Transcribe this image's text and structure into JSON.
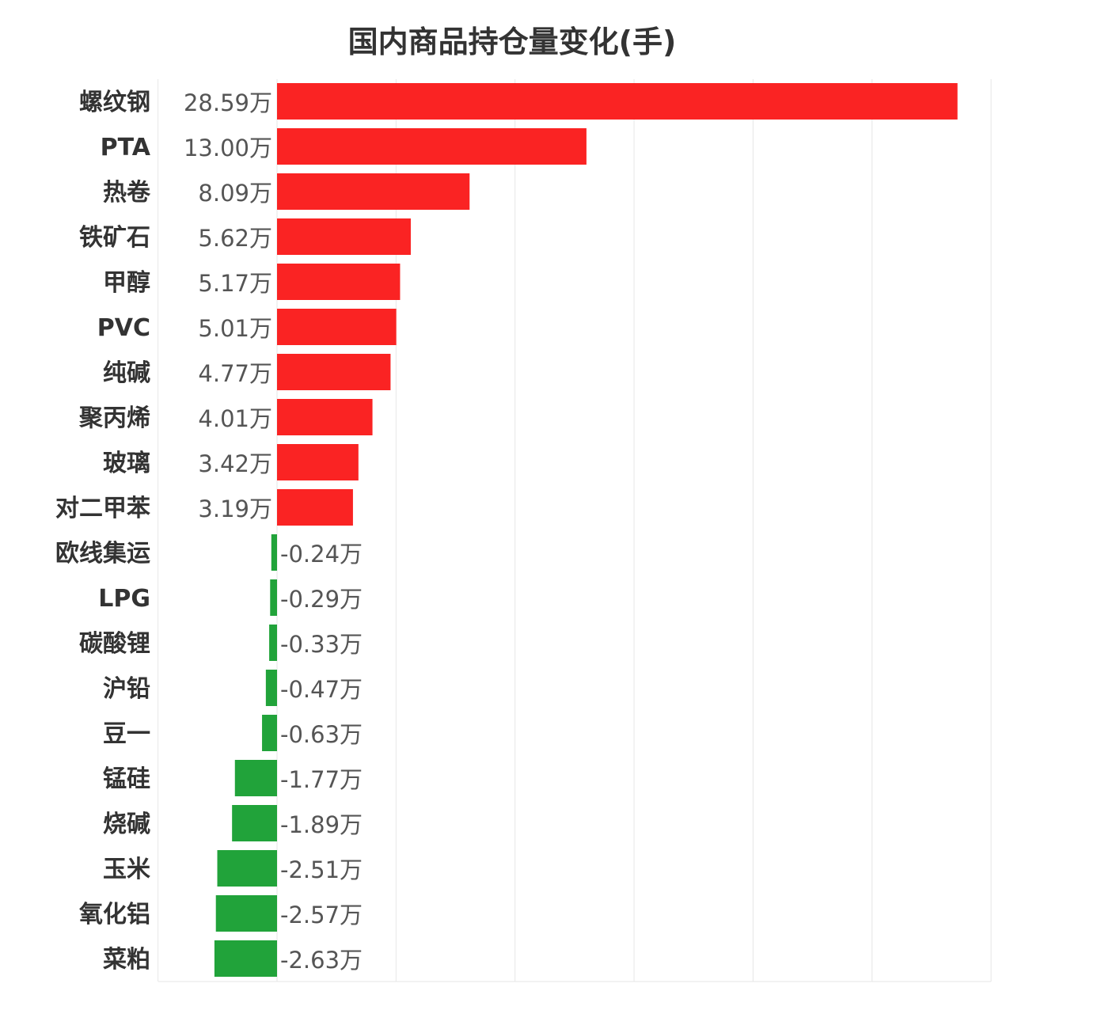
{
  "chart_data": {
    "type": "bar",
    "orientation": "horizontal",
    "title": "国内商品持仓量变化(手)",
    "unit": "万",
    "xlim": [
      -5,
      30
    ],
    "grid": true,
    "colors": {
      "positive": "#fa2323",
      "negative": "#21a33a"
    },
    "categories": [
      "螺纹钢",
      "PTA",
      "热卷",
      "铁矿石",
      "甲醇",
      "PVC",
      "纯碱",
      "聚丙烯",
      "玻璃",
      "对二甲苯",
      "欧线集运",
      "LPG",
      "碳酸锂",
      "沪铅",
      "豆一",
      "锰硅",
      "烧碱",
      "玉米",
      "氧化铝",
      "菜粕"
    ],
    "values": [
      28.59,
      13.0,
      8.09,
      5.62,
      5.17,
      5.01,
      4.77,
      4.01,
      3.42,
      3.19,
      -0.24,
      -0.29,
      -0.33,
      -0.47,
      -0.63,
      -1.77,
      -1.89,
      -2.51,
      -2.57,
      -2.63
    ],
    "labels": [
      "28.59万",
      "13.00万",
      "8.09万",
      "5.62万",
      "5.17万",
      "5.01万",
      "4.77万",
      "4.01万",
      "3.42万",
      "3.19万",
      "-0.24万",
      "-0.29万",
      "-0.33万",
      "-0.47万",
      "-0.63万",
      "-1.77万",
      "-1.89万",
      "-2.51万",
      "-2.57万",
      "-2.63万"
    ]
  }
}
